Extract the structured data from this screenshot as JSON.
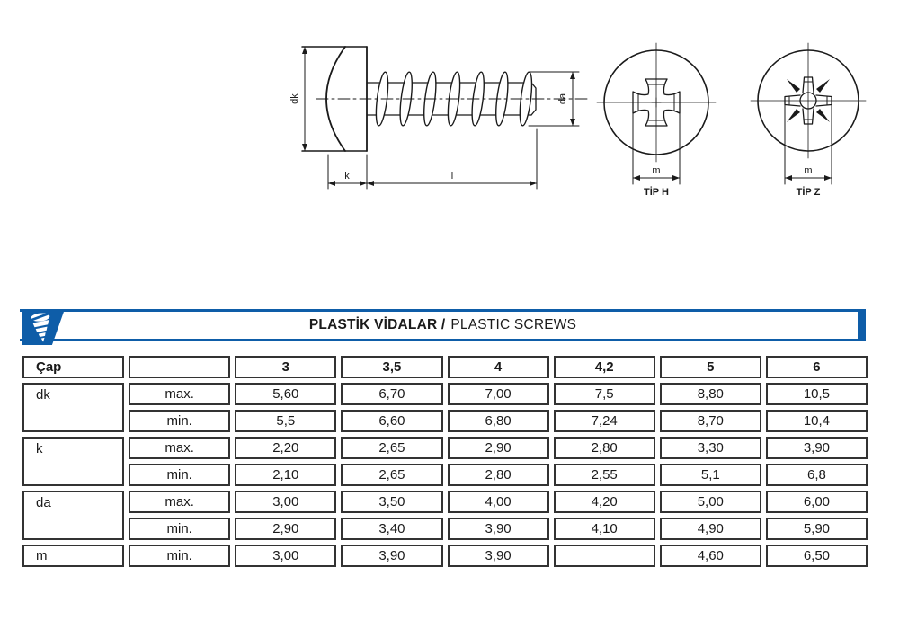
{
  "drawing": {
    "side_view": {
      "dim_dk": "dk",
      "dim_da": "da",
      "dim_k": "k",
      "dim_l": "l"
    },
    "head_views": [
      {
        "label": "TİP H",
        "dim": "m"
      },
      {
        "label": "TİP Z",
        "dim": "m"
      }
    ]
  },
  "banner": {
    "title_bold": "PLASTİK VİDALAR /",
    "title_regular": "PLASTIC SCREWS",
    "accent_color": "#0e5da8"
  },
  "table": {
    "cap_header": "Çap",
    "size_headers": [
      "3",
      "3,5",
      "4",
      "4,2",
      "5",
      "6"
    ],
    "groups": [
      {
        "param": "dk",
        "rows": [
          {
            "limit": "max.",
            "values": [
              "5,60",
              "6,70",
              "7,00",
              "7,5",
              "8,80",
              "10,5"
            ]
          },
          {
            "limit": "min.",
            "values": [
              "5,5",
              "6,60",
              "6,80",
              "7,24",
              "8,70",
              "10,4"
            ]
          }
        ]
      },
      {
        "param": "k",
        "rows": [
          {
            "limit": "max.",
            "values": [
              "2,20",
              "2,65",
              "2,90",
              "2,80",
              "3,30",
              "3,90"
            ]
          },
          {
            "limit": "min.",
            "values": [
              "2,10",
              "2,65",
              "2,80",
              "2,55",
              "5,1",
              "6,8"
            ]
          }
        ]
      },
      {
        "param": "da",
        "rows": [
          {
            "limit": "max.",
            "values": [
              "3,00",
              "3,50",
              "4,00",
              "4,20",
              "5,00",
              "6,00"
            ]
          },
          {
            "limit": "min.",
            "values": [
              "2,90",
              "3,40",
              "3,90",
              "4,10",
              "4,90",
              "5,90"
            ]
          }
        ]
      },
      {
        "param": "m",
        "rows": [
          {
            "limit": "min.",
            "values": [
              "3,00",
              "3,90",
              "3,90",
              "",
              "4,60",
              "6,50"
            ]
          }
        ]
      }
    ]
  }
}
